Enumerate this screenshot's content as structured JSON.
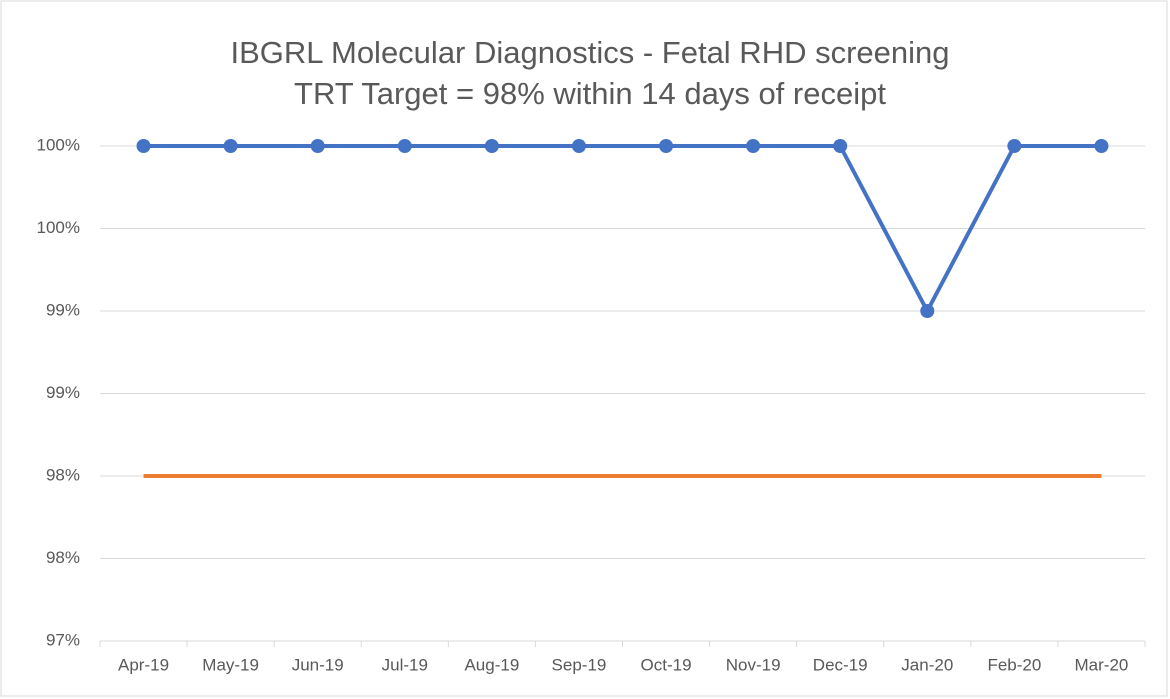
{
  "chart_data": {
    "type": "line",
    "title": "IBGRL Molecular Diagnostics - Fetal RHD screening",
    "subtitle": "TRT Target = 98% within 14 days of receipt",
    "categories": [
      "Apr-19",
      "May-19",
      "Jun-19",
      "Jul-19",
      "Aug-19",
      "Sep-19",
      "Oct-19",
      "Nov-19",
      "Dec-19",
      "Jan-20",
      "Feb-20",
      "Mar-20"
    ],
    "series": [
      {
        "color": "#4472c4",
        "markers": true,
        "values": [
          100,
          100,
          100,
          100,
          100,
          100,
          100,
          100,
          100,
          99,
          100,
          100
        ]
      },
      {
        "color": "#ed7d31",
        "markers": false,
        "values": [
          98,
          98,
          98,
          98,
          98,
          98,
          98,
          98,
          98,
          98,
          98,
          98
        ]
      }
    ],
    "ylim": [
      97,
      100
    ],
    "yticks": [
      {
        "value": 97,
        "label": "97%"
      },
      {
        "value": 97.5,
        "label": "98%"
      },
      {
        "value": 98,
        "label": "98%"
      },
      {
        "value": 98.5,
        "label": "99%"
      },
      {
        "value": 99,
        "label": "99%"
      },
      {
        "value": 99.5,
        "label": "100%"
      },
      {
        "value": 100,
        "label": "100%"
      }
    ],
    "grid": true
  }
}
